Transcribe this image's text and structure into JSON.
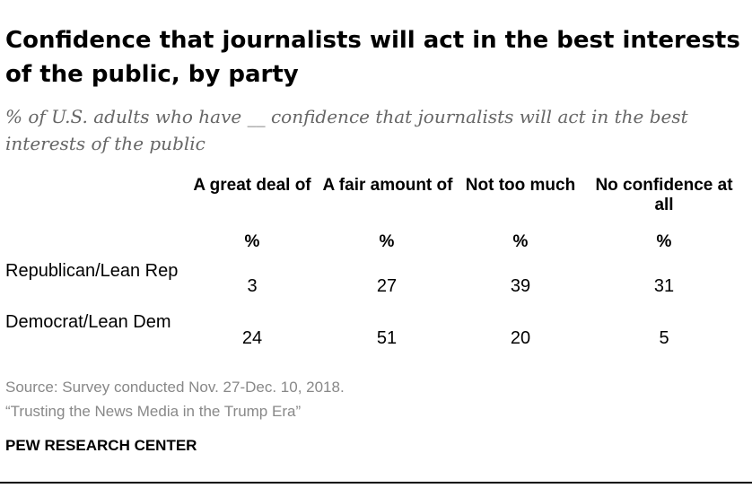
{
  "title": "Confidence that journalists will act in the best interests of the public, by party",
  "subtitle": "% of U.S. adults who have __ confidence that journalists will act in the best interests of the public",
  "chart_data": {
    "type": "table",
    "columns": [
      {
        "label": "A great deal of",
        "unit": "%"
      },
      {
        "label": "A fair amount of",
        "unit": "%"
      },
      {
        "label": "Not too much",
        "unit": "%"
      },
      {
        "label": "No confidence at all",
        "unit": "%"
      }
    ],
    "rows": [
      {
        "label": "Republican/Lean Rep",
        "values": [
          "3",
          "27",
          "39",
          "31"
        ]
      },
      {
        "label": "Democrat/Lean Dem",
        "values": [
          "24",
          "51",
          "20",
          "5"
        ]
      }
    ]
  },
  "source_line1": "Source: Survey conducted Nov. 27-Dec. 10, 2018.",
  "source_line2": "“Trusting the News Media in the Trump Era”",
  "brand": "PEW RESEARCH CENTER"
}
